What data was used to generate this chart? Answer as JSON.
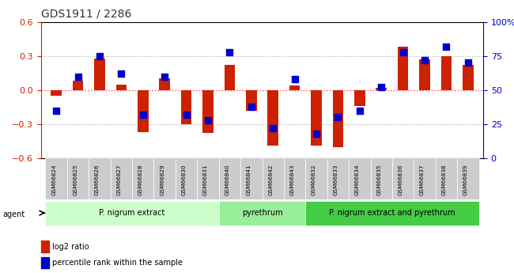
{
  "title": "GDS1911 / 2286",
  "samples": [
    "GSM66824",
    "GSM66825",
    "GSM66826",
    "GSM66827",
    "GSM66828",
    "GSM66829",
    "GSM66830",
    "GSM66831",
    "GSM66840",
    "GSM66841",
    "GSM66842",
    "GSM66843",
    "GSM66832",
    "GSM66833",
    "GSM66834",
    "GSM66835",
    "GSM66836",
    "GSM66837",
    "GSM66838",
    "GSM66839"
  ],
  "log2_ratio": [
    -0.05,
    0.08,
    0.28,
    0.05,
    -0.37,
    0.1,
    -0.3,
    -0.38,
    0.22,
    -0.18,
    -0.49,
    0.04,
    -0.49,
    -0.5,
    -0.14,
    0.02,
    0.38,
    0.27,
    0.3,
    0.22
  ],
  "percentile_rank": [
    35,
    60,
    75,
    62,
    32,
    60,
    32,
    28,
    78,
    38,
    22,
    58,
    18,
    30,
    35,
    52,
    78,
    72,
    82,
    70
  ],
  "ylim_left": [
    -0.6,
    0.6
  ],
  "ylim_right": [
    0,
    100
  ],
  "yticks_left": [
    -0.6,
    -0.3,
    0.0,
    0.3,
    0.6
  ],
  "yticks_right": [
    0,
    25,
    50,
    75,
    100
  ],
  "groups": [
    {
      "label": "P. nigrum extract",
      "start": 0,
      "end": 7,
      "color": "#ccffcc"
    },
    {
      "label": "pyrethrum",
      "start": 8,
      "end": 11,
      "color": "#99ee99"
    },
    {
      "label": "P. nigrum extract and pyrethrum",
      "start": 12,
      "end": 19,
      "color": "#44cc44"
    }
  ],
  "bar_color": "#cc2200",
  "dot_color": "#0000cc",
  "bar_width": 0.5,
  "dot_size": 40,
  "hline_color": "#ff4444",
  "hline_style": "dotted",
  "grid_color": "#aaaaaa",
  "grid_style": "dotted",
  "left_axis_color": "#cc2200",
  "right_axis_color": "#0000cc",
  "legend_items": [
    "log2 ratio",
    "percentile rank within the sample"
  ]
}
